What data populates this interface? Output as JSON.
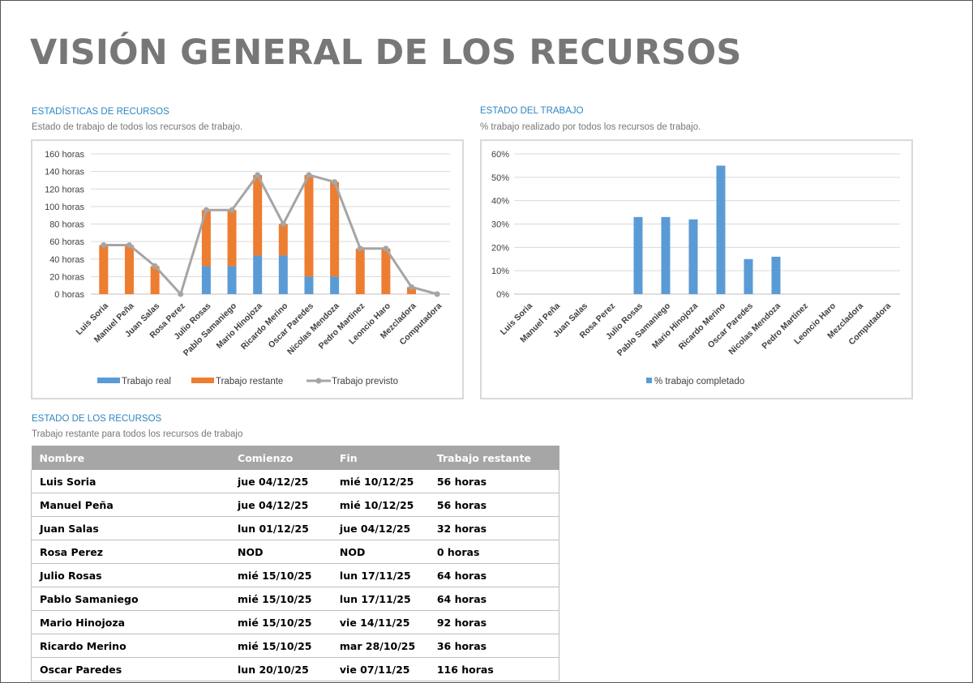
{
  "page": {
    "title": "VISIÓN GENERAL DE LOS RECURSOS"
  },
  "stats_section": {
    "title": "ESTADÍSTICAS DE RECURSOS",
    "subtitle": "Estado de trabajo de todos los recursos de trabajo."
  },
  "work_section": {
    "title": "ESTADO DEL TRABAJO",
    "subtitle": "% trabajo realizado por todos los recursos de trabajo."
  },
  "table_section": {
    "title": "ESTADO DE LOS RECURSOS",
    "subtitle": "Trabajo restante para todos los recursos de trabajo"
  },
  "table": {
    "headers": [
      "Nombre",
      "Comienzo",
      "Fin",
      "Trabajo restante"
    ],
    "rows": [
      [
        "Luis Soria",
        "jue 04/12/25",
        "mié 10/12/25",
        "56 horas"
      ],
      [
        "Manuel Peña",
        "jue 04/12/25",
        "mié 10/12/25",
        "56 horas"
      ],
      [
        "Juan Salas",
        "lun 01/12/25",
        "jue 04/12/25",
        "32 horas"
      ],
      [
        "Rosa Perez",
        "NOD",
        "NOD",
        "0 horas"
      ],
      [
        "Julio Rosas",
        "mié 15/10/25",
        "lun 17/11/25",
        "64 horas"
      ],
      [
        "Pablo Samaniego",
        "mié 15/10/25",
        "lun 17/11/25",
        "64 horas"
      ],
      [
        "Mario Hinojoza",
        "mié 15/10/25",
        "vie 14/11/25",
        "92 horas"
      ],
      [
        "Ricardo Merino",
        "mié 15/10/25",
        "mar 28/10/25",
        "36 horas"
      ],
      [
        "Oscar Paredes",
        "lun 20/10/25",
        "vie 07/11/25",
        "116 horas"
      ]
    ]
  },
  "colors": {
    "actual": "#5b9bd5",
    "remaining": "#ed7d31",
    "baseline": "#a5a5a5",
    "completion": "#5b9bd5",
    "grid": "#d9d9d9",
    "section_title": "#2e86c1"
  },
  "chart_data": [
    {
      "type": "bar",
      "stacked": true,
      "categories": [
        "Luis Soria",
        "Manuel Peña",
        "Juan Salas",
        "Rosa Perez",
        "Julio Rosas",
        "Pablo Samaniego",
        "Mario Hinojoza",
        "Ricardo Merino",
        "Oscar Paredes",
        "Nicolas Mendoza",
        "Pedro Martinez",
        "Leoncio Haro",
        "Mezcladora",
        "Computadora"
      ],
      "series": [
        {
          "name": "Trabajo real",
          "type": "bar",
          "values": [
            0,
            0,
            0,
            0,
            32,
            32,
            44,
            44,
            20,
            20,
            0,
            0,
            0,
            0
          ]
        },
        {
          "name": "Trabajo restante",
          "type": "bar",
          "values": [
            56,
            56,
            32,
            0,
            64,
            64,
            92,
            36,
            116,
            108,
            52,
            52,
            8,
            0
          ]
        },
        {
          "name": "Trabajo previsto",
          "type": "line",
          "values": [
            56,
            56,
            32,
            0,
            96,
            96,
            136,
            80,
            136,
            128,
            52,
            52,
            8,
            0
          ]
        }
      ],
      "yticks": [
        "0 horas",
        "20 horas",
        "40 horas",
        "60 horas",
        "80 horas",
        "100 horas",
        "120 horas",
        "140 horas",
        "160 horas"
      ],
      "ylim": [
        0,
        160
      ],
      "grid": true,
      "legend": "bottom"
    },
    {
      "type": "bar",
      "categories": [
        "Luis Soria",
        "Manuel Peña",
        "Juan Salas",
        "Rosa Perez",
        "Julio Rosas",
        "Pablo Samaniego",
        "Mario Hinojoza",
        "Ricardo Merino",
        "Oscar Paredes",
        "Nicolas Mendoza",
        "Pedro Martinez",
        "Leoncio Haro",
        "Mezcladora",
        "Computadora"
      ],
      "series": [
        {
          "name": "% trabajo completado",
          "values": [
            0,
            0,
            0,
            0,
            33,
            33,
            32,
            55,
            15,
            16,
            0,
            0,
            0,
            0
          ]
        }
      ],
      "yticks": [
        "0%",
        "10%",
        "20%",
        "30%",
        "40%",
        "50%",
        "60%"
      ],
      "ylim": [
        0,
        60
      ],
      "grid": true,
      "legend": "bottom"
    }
  ]
}
